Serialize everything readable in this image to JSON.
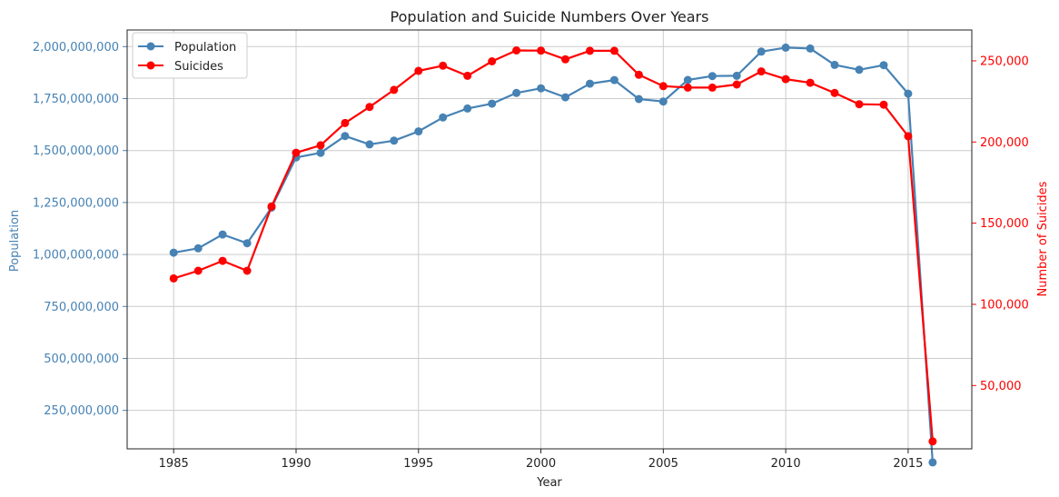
{
  "chart_data": {
    "type": "line",
    "title": "Population and Suicide Numbers Over Years",
    "xlabel": "Year",
    "ylabel_left": "Population",
    "ylabel_right": "Number of Suicides",
    "xlim": [
      1983.1,
      2017.6
    ],
    "ylim_left": [
      65000000,
      2080000000
    ],
    "ylim_right": [
      11000,
      269000
    ],
    "x_ticks": [
      1985,
      1990,
      1995,
      2000,
      2005,
      2010,
      2015
    ],
    "y_left_ticks": [
      250000000,
      500000000,
      750000000,
      1000000000,
      1250000000,
      1500000000,
      1750000000,
      2000000000
    ],
    "y_left_tick_labels": [
      "250,000,000",
      "500,000,000",
      "750,000,000",
      "1,000,000,000",
      "1,250,000,000",
      "1,500,000,000",
      "1,750,000,000",
      "2,000,000,000"
    ],
    "y_right_ticks": [
      50000,
      100000,
      150000,
      200000,
      250000
    ],
    "y_right_tick_labels": [
      "50,000",
      "100,000",
      "150,000",
      "200,000",
      "250,000"
    ],
    "grid": true,
    "legend_position": "top-left",
    "x": [
      1985,
      1986,
      1987,
      1988,
      1989,
      1990,
      1991,
      1992,
      1993,
      1994,
      1995,
      1996,
      1997,
      1998,
      1999,
      2000,
      2001,
      2002,
      2003,
      2004,
      2005,
      2006,
      2007,
      2008,
      2009,
      2010,
      2011,
      2012,
      2013,
      2014,
      2015,
      2016
    ],
    "series": [
      {
        "name": "Population",
        "axis": "left",
        "color": "#4682b4",
        "values": [
          1008600000,
          1029700000,
          1095900000,
          1054100000,
          1225300000,
          1466700000,
          1489100000,
          1569900000,
          1529500000,
          1547500000,
          1592100000,
          1659100000,
          1702400000,
          1725400000,
          1777100000,
          1799400000,
          1756100000,
          1821700000,
          1839300000,
          1747900000,
          1736100000,
          1839500000,
          1858600000,
          1859900000,
          1976000000,
          1995200000,
          1991000000,
          1912000000,
          1888600000,
          1910800000,
          1773700000,
          0
        ]
      },
      {
        "name": "Suicides",
        "axis": "right",
        "color": "#ff0000",
        "values": [
          116000,
          120700,
          126800,
          120700,
          160300,
          193400,
          198000,
          211700,
          221600,
          232100,
          243800,
          247000,
          240800,
          249700,
          256400,
          256300,
          250900,
          256200,
          256200,
          241400,
          234400,
          233500,
          233500,
          235400,
          243500,
          238700,
          236500,
          230200,
          223300,
          223000,
          203600,
          15600
        ]
      }
    ]
  }
}
